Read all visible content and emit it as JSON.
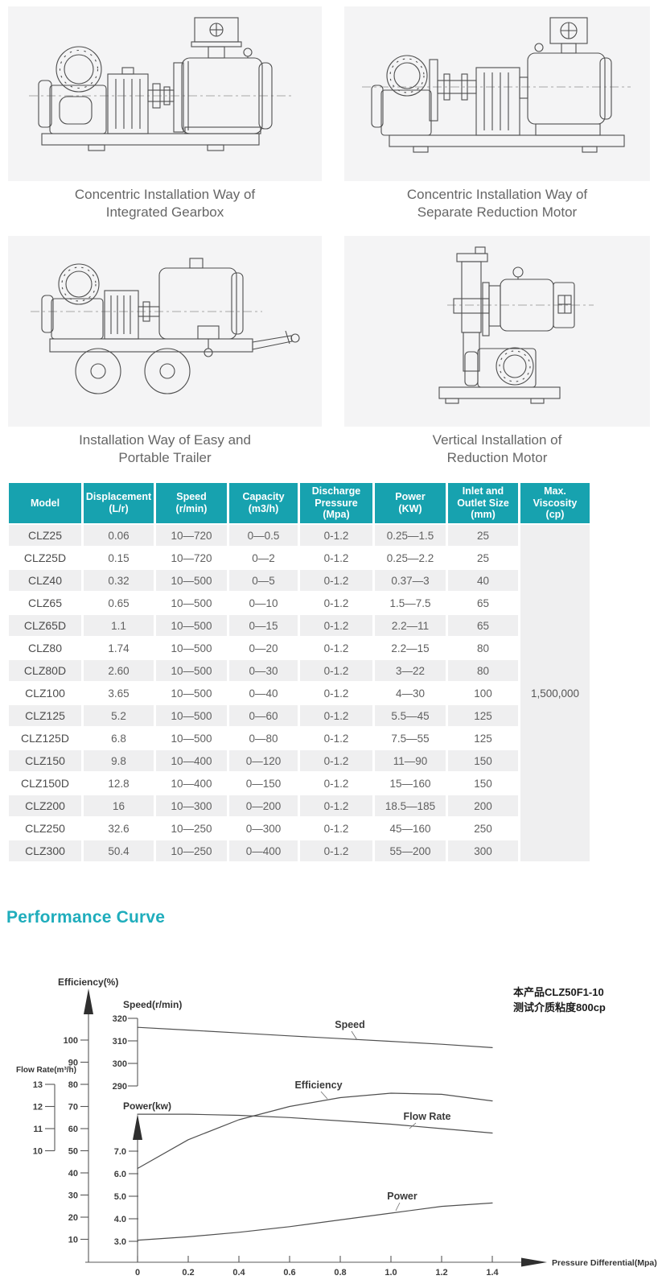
{
  "figures": [
    {
      "caption": [
        "Concentric Installation Way of",
        "Integrated Gearbox"
      ]
    },
    {
      "caption": [
        "Concentric Installation Way of",
        "Separate Reduction Motor"
      ]
    },
    {
      "caption": [
        "Installation Way of Easy and",
        "Portable Trailer"
      ]
    },
    {
      "caption": [
        "Vertical Installation of",
        "Reduction Motor"
      ]
    }
  ],
  "spec_table": {
    "header_bg": "#17a2af",
    "headers": [
      {
        "lines": [
          "Model"
        ]
      },
      {
        "lines": [
          "Displacement",
          "(L/r)"
        ]
      },
      {
        "lines": [
          "Speed",
          "(r/min)"
        ]
      },
      {
        "lines": [
          "Capacity",
          "(m3/h)"
        ]
      },
      {
        "lines": [
          "Discharge",
          "Pressure",
          "(Mpa)"
        ]
      },
      {
        "lines": [
          "Power",
          "(KW)"
        ]
      },
      {
        "lines": [
          "Inlet and",
          "Outlet Size",
          "(mm)"
        ]
      },
      {
        "lines": [
          "Max. Viscosity",
          "(cp)"
        ]
      }
    ],
    "rows": [
      [
        "CLZ25",
        "0.06",
        "10—720",
        "0—0.5",
        "0-1.2",
        "0.25—1.5",
        "25"
      ],
      [
        "CLZ25D",
        "0.15",
        "10—720",
        "0—2",
        "0-1.2",
        "0.25—2.2",
        "25"
      ],
      [
        "CLZ40",
        "0.32",
        "10—500",
        "0—5",
        "0-1.2",
        "0.37—3",
        "40"
      ],
      [
        "CLZ65",
        "0.65",
        "10—500",
        "0—10",
        "0-1.2",
        "1.5—7.5",
        "65"
      ],
      [
        "CLZ65D",
        "1.1",
        "10—500",
        "0—15",
        "0-1.2",
        "2.2—11",
        "65"
      ],
      [
        "CLZ80",
        "1.74",
        "10—500",
        "0—20",
        "0-1.2",
        "2.2—15",
        "80"
      ],
      [
        "CLZ80D",
        "2.60",
        "10—500",
        "0—30",
        "0-1.2",
        "3—22",
        "80"
      ],
      [
        "CLZ100",
        "3.65",
        "10—500",
        "0—40",
        "0-1.2",
        "4—30",
        "100"
      ],
      [
        "CLZ125",
        "5.2",
        "10—500",
        "0—60",
        "0-1.2",
        "5.5—45",
        "125"
      ],
      [
        "CLZ125D",
        "6.8",
        "10—500",
        "0—80",
        "0-1.2",
        "7.5—55",
        "125"
      ],
      [
        "CLZ150",
        "9.8",
        "10—400",
        "0—120",
        "0-1.2",
        "11—90",
        "150"
      ],
      [
        "CLZ150D",
        "12.8",
        "10—400",
        "0—150",
        "0-1.2",
        "15—160",
        "150"
      ],
      [
        "CLZ200",
        "16",
        "10—300",
        "0—200",
        "0-1.2",
        "18.5—185",
        "200"
      ],
      [
        "CLZ250",
        "32.6",
        "10—250",
        "0—300",
        "0-1.2",
        "45—160",
        "250"
      ],
      [
        "CLZ300",
        "50.4",
        "10—250",
        "0—400",
        "0-1.2",
        "55—200",
        "300"
      ]
    ],
    "max_viscosity": "1,500,000"
  },
  "performance": {
    "title": "Performance Curve",
    "title_color": "#1fadbc"
  },
  "chart_data": {
    "type": "line",
    "title": "Performance Curve",
    "xlabel": "Pressure Differential(Mpa)",
    "x_range": [
      0,
      1.4
    ],
    "x_ticks": [
      "0",
      "0.2",
      "0.4",
      "0.6",
      "0.8",
      "1.0",
      "1.2",
      "1.4"
    ],
    "annotation": [
      "本产品CLZ50F1-10",
      "测试介质粘度800cp"
    ],
    "axes": [
      {
        "id": "efficiency",
        "label": "Efficiency(%)",
        "ticks": [
          "100",
          "90",
          "80",
          "70",
          "60",
          "50",
          "40",
          "30",
          "20",
          "10"
        ]
      },
      {
        "id": "speed",
        "label": "Speed(r/min)",
        "ticks": [
          "320",
          "310",
          "300",
          "290"
        ]
      },
      {
        "id": "flow",
        "label": "Flow Rate(m³/h)",
        "ticks": [
          "13",
          "12",
          "11",
          "10"
        ]
      },
      {
        "id": "power",
        "label": "Power(kw)",
        "ticks": [
          "7.0",
          "6.0",
          "5.0",
          "4.0",
          "3.0"
        ]
      }
    ],
    "x": [
      0,
      0.2,
      0.4,
      0.6,
      0.8,
      1.0,
      1.2,
      1.4
    ],
    "series": [
      {
        "name": "Speed",
        "axis": "speed",
        "values": [
          316,
          314.8,
          313.5,
          312.2,
          311,
          309.8,
          308.5,
          307
        ]
      },
      {
        "name": "Efficiency",
        "axis": "efficiency",
        "values": [
          42,
          55,
          64,
          70,
          74,
          76,
          75.5,
          72.5
        ]
      },
      {
        "name": "Flow Rate",
        "axis": "flow",
        "values": [
          11.65,
          11.65,
          11.6,
          11.5,
          11.35,
          11.2,
          11.0,
          10.8
        ]
      },
      {
        "name": "Power",
        "axis": "power",
        "values": [
          3.05,
          3.2,
          3.4,
          3.65,
          3.95,
          4.25,
          4.55,
          4.7
        ]
      }
    ]
  }
}
